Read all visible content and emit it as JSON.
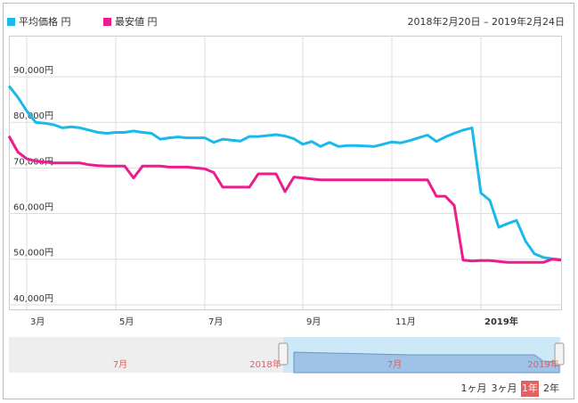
{
  "chart_data": {
    "type": "line",
    "date_range": "2018年2月20日 – 2019年2月24日",
    "categories": [
      null,
      null,
      "3月",
      null,
      null,
      null,
      null,
      null,
      null,
      null,
      null,
      null,
      "5月",
      null,
      null,
      null,
      null,
      null,
      null,
      null,
      null,
      null,
      "7月",
      null,
      null,
      null,
      null,
      null,
      null,
      null,
      null,
      null,
      null,
      "9月",
      null,
      null,
      null,
      null,
      null,
      null,
      null,
      null,
      null,
      "11月",
      null,
      null,
      null,
      null,
      null,
      null,
      null,
      null,
      null,
      "2019年",
      null,
      null,
      null,
      null,
      null,
      null,
      null,
      null,
      null
    ],
    "series": [
      {
        "name": "平均価格 円",
        "color": "#1ab9ea",
        "values": [
          88000,
          85500,
          82500,
          80000,
          79800,
          79500,
          78800,
          79000,
          78800,
          78300,
          77800,
          77600,
          77800,
          77800,
          78100,
          77800,
          77600,
          76300,
          76600,
          76800,
          76600,
          76600,
          76600,
          75600,
          76300,
          76100,
          75900,
          76900,
          76900,
          77100,
          77300,
          77000,
          76400,
          75200,
          75800,
          74700,
          75600,
          74700,
          74900,
          74900,
          74800,
          74700,
          75200,
          75700,
          75500,
          76000,
          76600,
          77200,
          75800,
          76800,
          77600,
          78300,
          78800,
          64500,
          62900,
          57000,
          57800,
          58500,
          54000,
          51200,
          50400,
          50100,
          49900
        ]
      },
      {
        "name": "最安値 円",
        "color": "#ec1c8c",
        "values": [
          77000,
          73500,
          72000,
          71500,
          71300,
          71100,
          71100,
          71100,
          71100,
          70700,
          70500,
          70400,
          70400,
          70400,
          67800,
          70400,
          70400,
          70400,
          70200,
          70200,
          70200,
          70000,
          69800,
          69000,
          65800,
          65800,
          65800,
          65800,
          68700,
          68700,
          68700,
          64800,
          68000,
          67800,
          67600,
          67400,
          67400,
          67400,
          67400,
          67400,
          67400,
          67400,
          67400,
          67400,
          67400,
          67400,
          67400,
          67400,
          63800,
          63800,
          61800,
          49800,
          49600,
          49700,
          49700,
          49500,
          49300,
          49300,
          49300,
          49300,
          49300,
          50000,
          49800
        ]
      }
    ],
    "ylim": [
      39000,
      99000
    ],
    "yticks": [
      {
        "value": 40000,
        "label": "40,000円"
      },
      {
        "value": 50000,
        "label": "50,000円"
      },
      {
        "value": 60000,
        "label": "60,000円"
      },
      {
        "value": 70000,
        "label": "70,000円"
      },
      {
        "value": 80000,
        "label": "80,000円"
      },
      {
        "value": 90000,
        "label": "90,000円"
      }
    ],
    "grid": true
  },
  "navigator": {
    "labels": [
      "7月",
      "2018年",
      "7月",
      "2019年"
    ]
  },
  "range_buttons": [
    "1ヶ月",
    "3ヶ月",
    "1年",
    "2年"
  ]
}
